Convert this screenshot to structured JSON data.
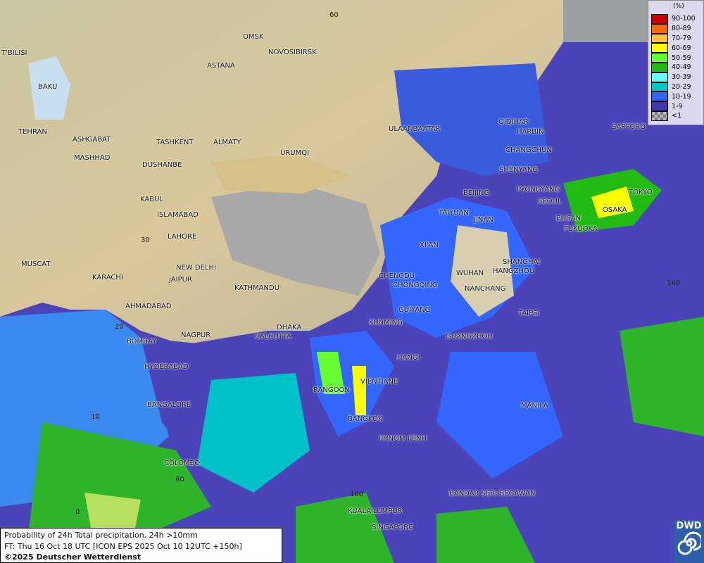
{
  "title": "Probability of 24h Total precipitation, 24h >10mm",
  "forecast_time": "FT: Thu 16 Oct 18 UTC [ICON EPS 2025 Oct 10 12UTC +150h]",
  "copyright": "©2025 Deutscher Wetterdienst",
  "logo_text": "DWD",
  "legend": {
    "unit": "(%)",
    "items": [
      {
        "label": "90-100",
        "color": "#cc0000"
      },
      {
        "label": "80-89",
        "color": "#ff6600"
      },
      {
        "label": "70-79",
        "color": "#ffc040"
      },
      {
        "label": "60-69",
        "color": "#ffff00"
      },
      {
        "label": "50-59",
        "color": "#66ff33"
      },
      {
        "label": "40-49",
        "color": "#22bb11"
      },
      {
        "label": "30-39",
        "color": "#66ffff"
      },
      {
        "label": "20-29",
        "color": "#00c8c8"
      },
      {
        "label": "10-19",
        "color": "#3366ff"
      },
      {
        "label": "1-9",
        "color": "#4433aa"
      },
      {
        "label": "<1",
        "color": "#999999"
      }
    ]
  },
  "cities": [
    "OMSK",
    "NOVOSIBIRSK",
    "ASTANA",
    "T'BILISI",
    "BAKU",
    "TEHRAN",
    "ASHGABAT",
    "MASHHAD",
    "TASHKENT",
    "ALMATY",
    "DUSHANBE",
    "URUMQI",
    "ULAANBAATAR",
    "QIQIHAR",
    "HARBIN",
    "CHANGCHUN",
    "SHENYANG",
    "SAPPORO",
    "BEIJING",
    "PYONGYANG",
    "SEOUL",
    "TOKYO",
    "OSAKA",
    "BUSAN",
    "FUKUOKA",
    "TAIYUAN",
    "JINAN",
    "KABUL",
    "ISLAMABAD",
    "LAHORE",
    "XI'AN",
    "SHANGHAI",
    "HANGZHOU",
    "WUHAN",
    "CHENGDU",
    "CHONGQING",
    "NANCHANG",
    "NEW DELHI",
    "JAIPUR",
    "MUSCAT",
    "KARACHI",
    "KATHMANDU",
    "AHMADABAD",
    "GUIYANG",
    "TAIPEI",
    "KUNMING",
    "DHAKA",
    "CALCUTTA",
    "NAGPUR",
    "BOMBAY",
    "GUANGZHOU",
    "HANOI",
    "HYDERABAD",
    "RANGOON",
    "VIENTIANE",
    "MANILA",
    "BANGALORE",
    "BANGKOK",
    "PHNOM PENH",
    "COLOMBO",
    "BANDAR SERI BEGAWAN",
    "KUALA LUMPUR",
    "SINGAPORE"
  ],
  "grid_labels": [
    "60",
    "30",
    "20",
    "10",
    "0",
    "80",
    "100",
    "140"
  ]
}
